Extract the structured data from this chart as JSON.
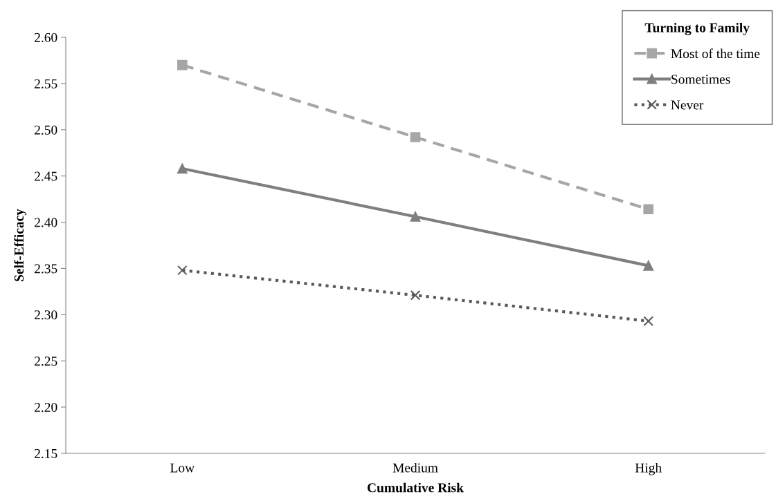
{
  "chart_data": {
    "type": "line",
    "xlabel": "Cumulative Risk",
    "ylabel": "Self-Efficacy",
    "legend_title": "Turning to Family",
    "categories": [
      "Low",
      "Medium",
      "High"
    ],
    "series": [
      {
        "name": "Most of the time",
        "color": "#a6a6a6",
        "values": [
          2.57,
          2.492,
          2.414
        ],
        "marker": "square",
        "line_style": "dashed"
      },
      {
        "name": "Sometimes",
        "color": "#7f7f7f",
        "values": [
          2.458,
          2.406,
          2.353
        ],
        "marker": "triangle",
        "line_style": "solid"
      },
      {
        "name": "Never",
        "color": "#595959",
        "values": [
          2.348,
          2.321,
          2.293
        ],
        "marker": "cross",
        "line_style": "dotted"
      }
    ],
    "ylim": [
      2.15,
      2.6
    ],
    "yticks": [
      {
        "value": 2.15,
        "label": "2.15"
      },
      {
        "value": 2.2,
        "label": "2.20"
      },
      {
        "value": 2.25,
        "label": "2.25"
      },
      {
        "value": 2.3,
        "label": "2.30"
      },
      {
        "value": 2.35,
        "label": "2.35"
      },
      {
        "value": 2.4,
        "label": "2.40"
      },
      {
        "value": 2.45,
        "label": "2.45"
      },
      {
        "value": 2.5,
        "label": "2.50"
      },
      {
        "value": 2.55,
        "label": "2.55"
      },
      {
        "value": 2.6,
        "label": "2.60"
      }
    ],
    "grid": false,
    "legend": "top right"
  }
}
